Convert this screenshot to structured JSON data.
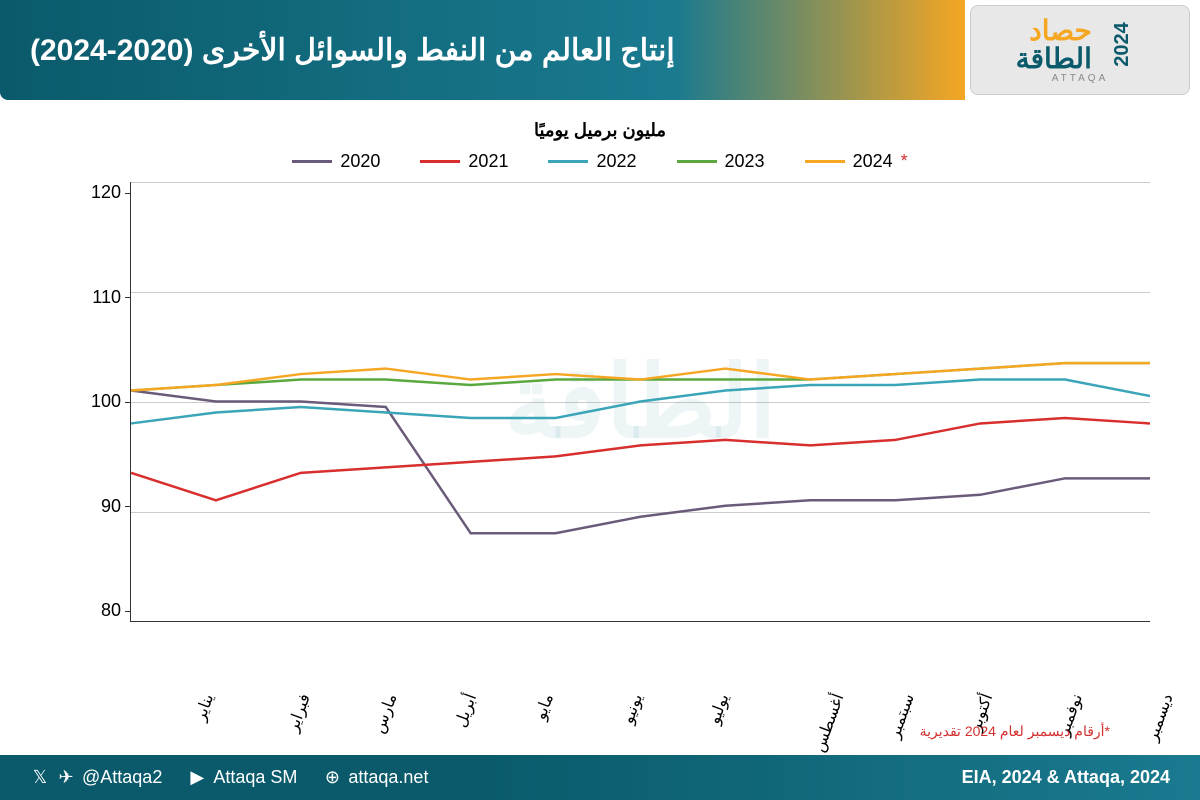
{
  "header": {
    "title": "إنتاج العالم من النفط والسوائل الأخرى (2020-2024)",
    "logo_top": "حصاد",
    "logo_bottom": "الطاقة",
    "logo_year": "2024",
    "logo_latin": "ATTAQA"
  },
  "chart": {
    "type": "line",
    "subtitle": "مليون برميل يوميًا",
    "ylim": [
      80,
      120
    ],
    "yticks": [
      80,
      90,
      100,
      110,
      120
    ],
    "xlabels": [
      "يناير",
      "فبراير",
      "مارس",
      "أبريل",
      "مايو",
      "يونيو",
      "يوليو",
      "أغسطس",
      "سبتمبر",
      "أكتوبر",
      "نوفمبر",
      "ديسمبر"
    ],
    "line_width": 2.5,
    "grid_color": "#cccccc",
    "axis_color": "#333333",
    "background_color": "#ffffff",
    "label_fontsize": 16,
    "tick_fontsize": 18,
    "watermark": "الطاقة",
    "series": [
      {
        "name": "2020",
        "color": "#6b5b7b",
        "values": [
          101.0,
          100.0,
          100.0,
          99.5,
          88.0,
          88.0,
          89.5,
          90.5,
          91.0,
          91.0,
          91.5,
          93.0,
          93.0
        ]
      },
      {
        "name": "2021",
        "color": "#d92e2e",
        "values": [
          93.5,
          91.0,
          93.5,
          94.0,
          94.5,
          95.0,
          96.0,
          96.5,
          96.0,
          96.5,
          98.0,
          98.5,
          98.0
        ]
      },
      {
        "name": "2022",
        "color": "#3aa5b8",
        "values": [
          98.0,
          99.0,
          99.5,
          99.0,
          98.5,
          98.5,
          100.0,
          101.0,
          101.5,
          101.5,
          102.0,
          102.0,
          100.5
        ]
      },
      {
        "name": "2023",
        "color": "#5aa83f",
        "values": [
          101.0,
          101.5,
          102.0,
          102.0,
          101.5,
          102.0,
          102.0,
          102.0,
          102.0,
          102.5,
          103.0,
          103.5,
          103.5
        ]
      },
      {
        "name": "2024",
        "color": "#f5a623",
        "star": true,
        "values": [
          101.0,
          101.5,
          102.5,
          103.0,
          102.0,
          102.5,
          102.0,
          103.0,
          102.0,
          102.5,
          103.0,
          103.5,
          103.5
        ]
      }
    ],
    "footnote": "*أرقام ديسمبر لعام 2024 تقديرية"
  },
  "footer": {
    "twitter": "@Attaqa2",
    "youtube": "Attaqa SM",
    "web": "attaqa.net",
    "source": "EIA, 2024 & Attaqa, 2024"
  }
}
